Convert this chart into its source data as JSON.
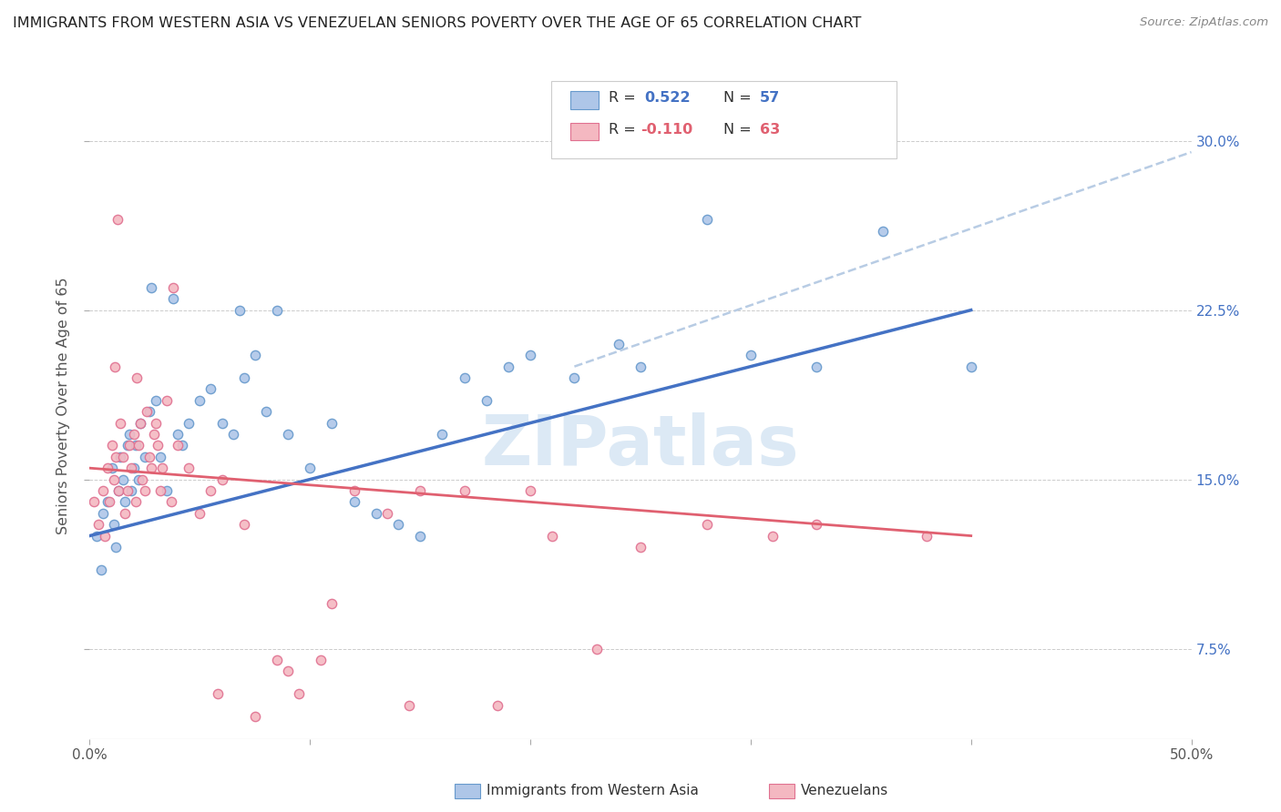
{
  "title": "IMMIGRANTS FROM WESTERN ASIA VS VENEZUELAN SENIORS POVERTY OVER THE AGE OF 65 CORRELATION CHART",
  "source": "Source: ZipAtlas.com",
  "ylabel": "Seniors Poverty Over the Age of 65",
  "ytick_labels": [
    "7.5%",
    "15.0%",
    "22.5%",
    "30.0%"
  ],
  "ytick_values": [
    7.5,
    15.0,
    22.5,
    30.0
  ],
  "xlim": [
    0.0,
    50.0
  ],
  "ylim": [
    3.5,
    33.0
  ],
  "r_blue": 0.522,
  "n_blue": 57,
  "r_pink": -0.11,
  "n_pink": 63,
  "color_blue_fill": "#aec6e8",
  "color_blue_edge": "#6699cc",
  "color_pink_fill": "#f4b8c1",
  "color_pink_edge": "#e07090",
  "color_blue_line": "#4472c4",
  "color_pink_line": "#e06070",
  "color_dashed_line": "#b8cce4",
  "legend_label_blue": "Immigrants from Western Asia",
  "legend_label_pink": "Venezuelans",
  "blue_scatter_x": [
    0.3,
    0.5,
    0.6,
    0.8,
    1.0,
    1.1,
    1.2,
    1.3,
    1.4,
    1.5,
    1.6,
    1.7,
    1.8,
    1.9,
    2.0,
    2.1,
    2.2,
    2.3,
    2.5,
    2.7,
    3.0,
    3.2,
    3.5,
    4.0,
    4.2,
    4.5,
    5.0,
    5.5,
    6.0,
    6.5,
    7.0,
    7.5,
    8.0,
    9.0,
    10.0,
    11.0,
    12.0,
    13.0,
    14.0,
    15.0,
    16.0,
    18.0,
    20.0,
    22.0,
    25.0,
    28.0,
    30.0,
    33.0,
    36.0,
    40.0,
    2.8,
    3.8,
    6.8,
    8.5,
    17.0,
    19.0,
    24.0
  ],
  "blue_scatter_y": [
    12.5,
    11.0,
    13.5,
    14.0,
    15.5,
    13.0,
    12.0,
    14.5,
    16.0,
    15.0,
    14.0,
    16.5,
    17.0,
    14.5,
    15.5,
    16.5,
    15.0,
    17.5,
    16.0,
    18.0,
    18.5,
    16.0,
    14.5,
    17.0,
    16.5,
    17.5,
    18.5,
    19.0,
    17.5,
    17.0,
    19.5,
    20.5,
    18.0,
    17.0,
    15.5,
    17.5,
    14.0,
    13.5,
    13.0,
    12.5,
    17.0,
    18.5,
    20.5,
    19.5,
    20.0,
    26.5,
    20.5,
    20.0,
    26.0,
    20.0,
    23.5,
    23.0,
    22.5,
    22.5,
    19.5,
    20.0,
    21.0
  ],
  "pink_scatter_x": [
    0.2,
    0.4,
    0.6,
    0.7,
    0.8,
    0.9,
    1.0,
    1.1,
    1.2,
    1.3,
    1.4,
    1.5,
    1.6,
    1.7,
    1.8,
    1.9,
    2.0,
    2.1,
    2.2,
    2.3,
    2.4,
    2.5,
    2.6,
    2.7,
    2.8,
    2.9,
    3.0,
    3.1,
    3.2,
    3.3,
    3.5,
    3.7,
    4.0,
    4.5,
    5.0,
    5.5,
    6.0,
    7.0,
    8.5,
    9.5,
    10.5,
    12.0,
    13.5,
    15.0,
    17.0,
    20.0,
    23.0,
    25.0,
    28.0,
    33.0,
    38.0,
    1.15,
    1.25,
    2.15,
    3.8,
    5.8,
    7.5,
    9.0,
    11.0,
    14.5,
    18.5,
    21.0,
    31.0
  ],
  "pink_scatter_y": [
    14.0,
    13.0,
    14.5,
    12.5,
    15.5,
    14.0,
    16.5,
    15.0,
    16.0,
    14.5,
    17.5,
    16.0,
    13.5,
    14.5,
    16.5,
    15.5,
    17.0,
    14.0,
    16.5,
    17.5,
    15.0,
    14.5,
    18.0,
    16.0,
    15.5,
    17.0,
    17.5,
    16.5,
    14.5,
    15.5,
    18.5,
    14.0,
    16.5,
    15.5,
    13.5,
    14.5,
    15.0,
    13.0,
    7.0,
    5.5,
    7.0,
    14.5,
    13.5,
    14.5,
    14.5,
    14.5,
    7.5,
    12.0,
    13.0,
    13.0,
    12.5,
    20.0,
    26.5,
    19.5,
    23.5,
    5.5,
    4.5,
    6.5,
    9.5,
    5.0,
    5.0,
    12.5,
    12.5
  ],
  "blue_line_x": [
    0.0,
    40.0
  ],
  "blue_line_y": [
    12.5,
    22.5
  ],
  "pink_line_x": [
    0.0,
    40.0
  ],
  "pink_line_y": [
    15.5,
    12.5
  ],
  "dashed_line_x": [
    22.0,
    50.0
  ],
  "dashed_line_y": [
    20.0,
    29.5
  ],
  "watermark": "ZIPatlas",
  "watermark_color": "#dce9f5",
  "watermark_fontsize": 55,
  "title_fontsize": 11.5,
  "axis_tick_fontsize": 11,
  "right_tick_color": "#4472c4"
}
